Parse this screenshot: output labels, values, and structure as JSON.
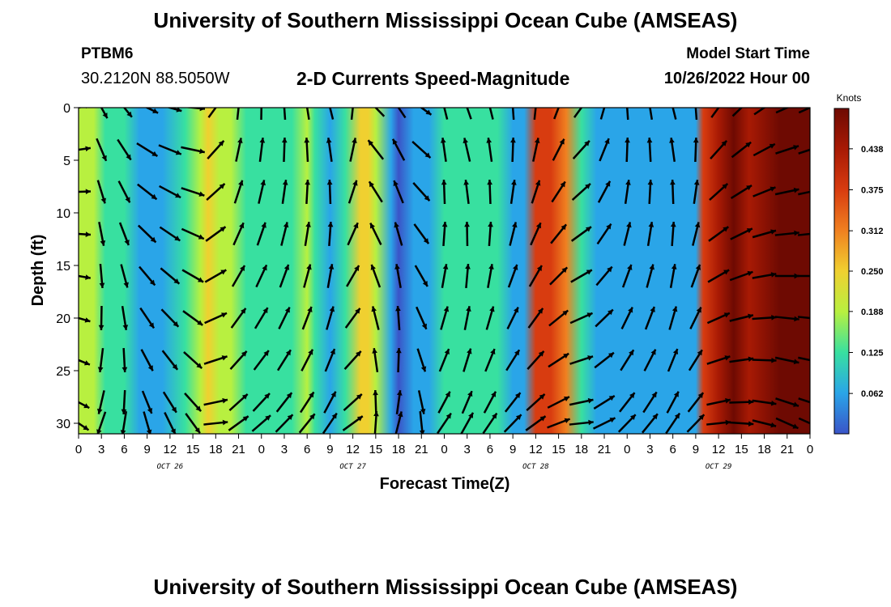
{
  "header": {
    "title": "University of Southern Mississippi Ocean Cube (AMSEAS)",
    "station": "PTBM6",
    "coordinates": "30.2120N  88.5050W",
    "subtitle": "2-D Currents Speed-Magnitude",
    "model_start_label": "Model Start Time",
    "model_start_value": "10/26/2022 Hour 00"
  },
  "footer": {
    "title": "University of Southern Mississippi Ocean Cube (AMSEAS)"
  },
  "chart_data": {
    "type": "heatmap",
    "title": "2-D Currents Speed-Magnitude",
    "xlabel": "Forecast Time(Z)",
    "ylabel": "Depth (ft)",
    "xlim": [
      0,
      96
    ],
    "ylim": [
      31,
      0
    ],
    "x_tick_labels": [
      "0",
      "3",
      "6",
      "9",
      "12",
      "15",
      "18",
      "21",
      "0",
      "3",
      "6",
      "9",
      "12",
      "15",
      "18",
      "21",
      "0",
      "3",
      "6",
      "9",
      "12",
      "15",
      "18",
      "21",
      "0",
      "3",
      "6",
      "9",
      "12",
      "15",
      "18",
      "21",
      "0"
    ],
    "day_labels": [
      {
        "label": "OCT 26",
        "hour": 12
      },
      {
        "label": "OCT 27",
        "hour": 36
      },
      {
        "label": "OCT 28",
        "hour": 60
      },
      {
        "label": "OCT 29",
        "hour": 84
      }
    ],
    "y_ticks": [
      0,
      5,
      10,
      15,
      20,
      25,
      30
    ],
    "colorbar": {
      "title": "Knots",
      "vmin": 0,
      "vmax": 0.5,
      "tick_labels": [
        "0.062",
        "0.125",
        "0.188",
        "0.250",
        "0.312",
        "0.375",
        "0.438"
      ],
      "colors": [
        "#3a54c8",
        "#2aa5e8",
        "#38e0a0",
        "#b8f040",
        "#f0d030",
        "#f08020",
        "#d83c10",
        "#a81a04",
        "#6e0a02"
      ]
    },
    "speed_profile_hours": [
      0,
      2,
      3.5,
      6,
      8,
      11,
      14,
      16,
      17,
      18.5,
      20,
      22,
      25,
      28,
      30,
      31,
      33,
      35,
      37,
      38,
      39,
      41,
      42,
      44,
      46,
      48,
      52,
      55,
      57,
      58.5,
      60,
      62,
      64,
      66,
      68,
      70,
      72,
      75,
      78,
      80,
      81,
      82,
      84,
      86,
      88,
      92,
      96
    ],
    "speed_profile_knots": [
      0.19,
      0.16,
      0.12,
      0.1,
      0.07,
      0.06,
      0.11,
      0.17,
      0.22,
      0.21,
      0.18,
      0.15,
      0.12,
      0.14,
      0.19,
      0.12,
      0.07,
      0.15,
      0.24,
      0.26,
      0.21,
      0.04,
      0.02,
      0.05,
      0.09,
      0.1,
      0.12,
      0.1,
      0.08,
      0.04,
      0.36,
      0.4,
      0.34,
      0.1,
      0.08,
      0.07,
      0.09,
      0.08,
      0.06,
      0.05,
      0.07,
      0.38,
      0.46,
      0.47,
      0.46,
      0.48,
      0.5
    ],
    "arrow_hours": [
      0,
      3,
      6,
      9,
      12,
      15,
      18,
      21,
      24,
      27,
      30,
      33,
      36,
      39,
      42,
      45,
      48,
      51,
      54,
      57,
      60,
      63,
      66,
      69,
      72,
      75,
      78,
      81,
      84,
      87,
      90,
      93,
      96
    ],
    "arrow_depths": [
      0,
      4,
      8,
      12,
      16,
      20,
      24,
      28,
      30
    ],
    "arrow_direction_deg": [
      100,
      175,
      165,
      140,
      130,
      120,
      60,
      30,
      25,
      20,
      15,
      10,
      30,
      340,
      350,
      150,
      10,
      5,
      10,
      20,
      30,
      45,
      60,
      40,
      20,
      15,
      10,
      20,
      60,
      70,
      80,
      90,
      90
    ]
  }
}
